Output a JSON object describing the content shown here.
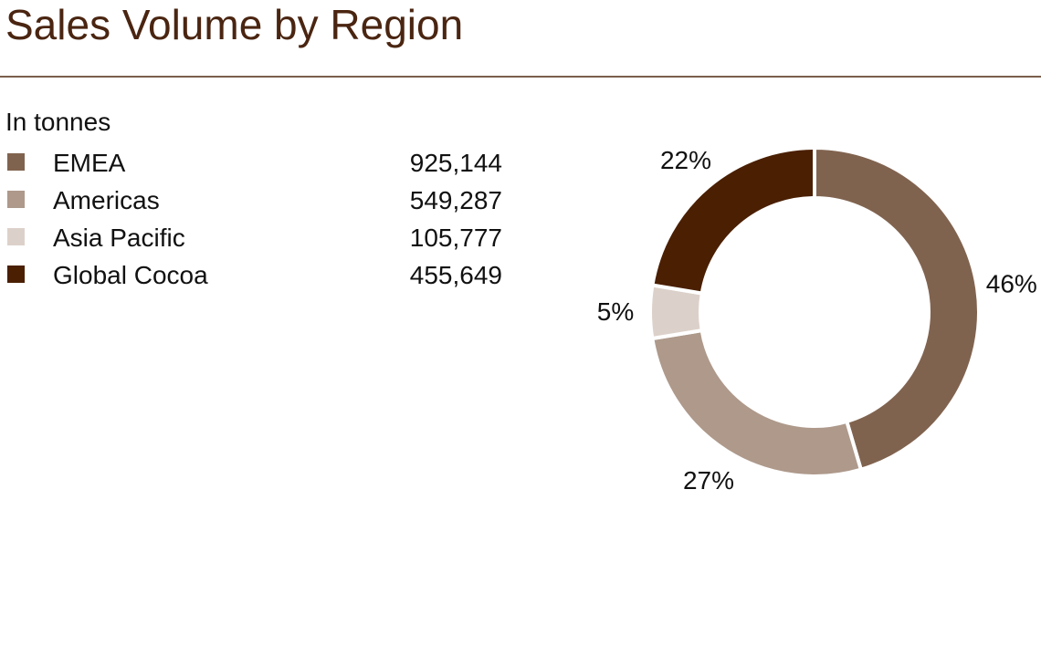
{
  "header": {
    "title": "Sales Volume by Region"
  },
  "chart_data": {
    "type": "pie",
    "subtitle": "In tonnes",
    "donut": true,
    "categories": [
      "EMEA",
      "Americas",
      "Asia Pacific",
      "Global Cocoa"
    ],
    "values": [
      925144,
      549287,
      105777,
      455649
    ],
    "labels": [
      "46%",
      "27%",
      "5%",
      "22%"
    ],
    "value_labels": [
      "925,144",
      "549,287",
      "105,777",
      "455,649"
    ],
    "colors": [
      "#80634f",
      "#ae998b",
      "#dcd1ca",
      "#4a1f02"
    ],
    "legend": "left",
    "grid": false
  }
}
